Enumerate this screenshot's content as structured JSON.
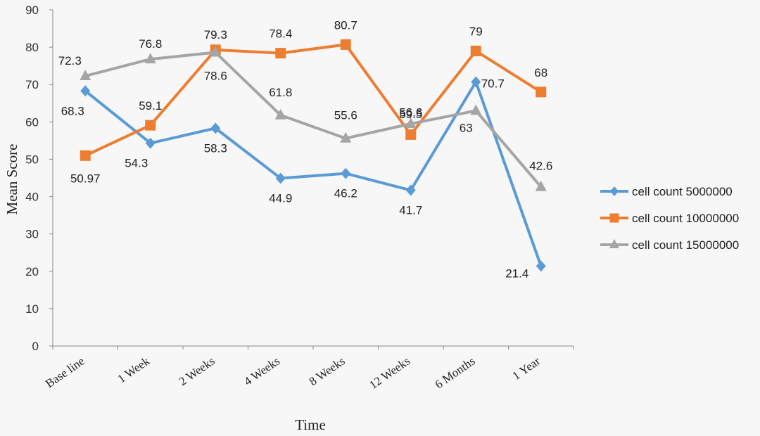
{
  "chart_data": {
    "type": "line",
    "categories": [
      "Base line",
      "1 Week",
      "2 Weeks",
      "4 Weeks",
      "8 Weeks",
      "12 Weeks",
      "6 Months",
      "1 Year"
    ],
    "series": [
      {
        "name": "cell count 5000000",
        "color": "#5b9bd5",
        "marker": "diamond",
        "values": [
          68.3,
          54.3,
          58.3,
          44.9,
          46.2,
          41.7,
          70.7,
          21.4
        ],
        "labels": [
          "68.3",
          "54.3",
          "58.3",
          "44.9",
          "46.2",
          "41.7",
          "70.7",
          "21.4"
        ]
      },
      {
        "name": "cell count 10000000",
        "color": "#ed7d31",
        "marker": "square",
        "values": [
          50.97,
          59.1,
          79.3,
          78.4,
          80.7,
          56.6,
          79,
          68
        ],
        "labels": [
          "50.97",
          "59.1",
          "79.3",
          "78.4",
          "80.7",
          "56.6",
          "79",
          "68"
        ]
      },
      {
        "name": "cell count 15000000",
        "color": "#a5a5a5",
        "marker": "triangle",
        "values": [
          72.3,
          76.8,
          78.6,
          61.8,
          55.6,
          59.5,
          63,
          42.6
        ],
        "labels": [
          "72.3",
          "76.8",
          "78.6",
          "61.8",
          "55.6",
          "59.5",
          "63",
          "42.6"
        ]
      }
    ],
    "xlabel": "Time",
    "ylabel": "Mean Score",
    "ylim": [
      0,
      90
    ],
    "yticks": [
      0,
      10,
      20,
      30,
      40,
      50,
      60,
      70,
      80,
      90
    ],
    "grid": false,
    "legend_position": "right"
  }
}
